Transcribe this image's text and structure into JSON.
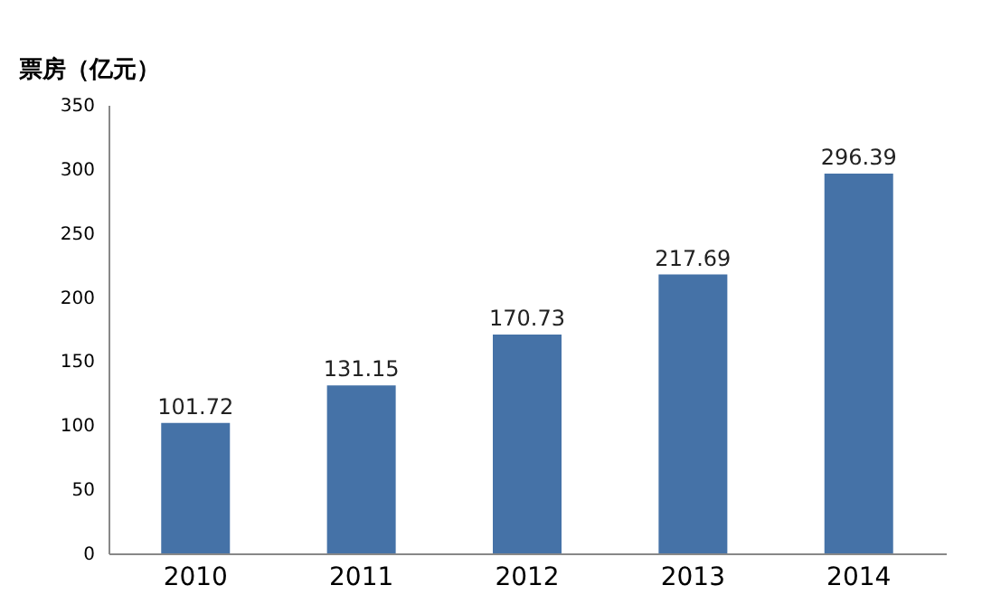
{
  "chart_data": {
    "type": "bar",
    "ylabel": "票房（亿元）",
    "categories": [
      "2010",
      "2011",
      "2012",
      "2013",
      "2014"
    ],
    "values": [
      101.72,
      131.15,
      170.73,
      217.69,
      296.39
    ],
    "color": "#4572a7",
    "ylim": [
      0,
      350
    ],
    "yticks": [
      0,
      50,
      100,
      150,
      200,
      250,
      300,
      350
    ],
    "grid": false,
    "data_labels": true
  }
}
